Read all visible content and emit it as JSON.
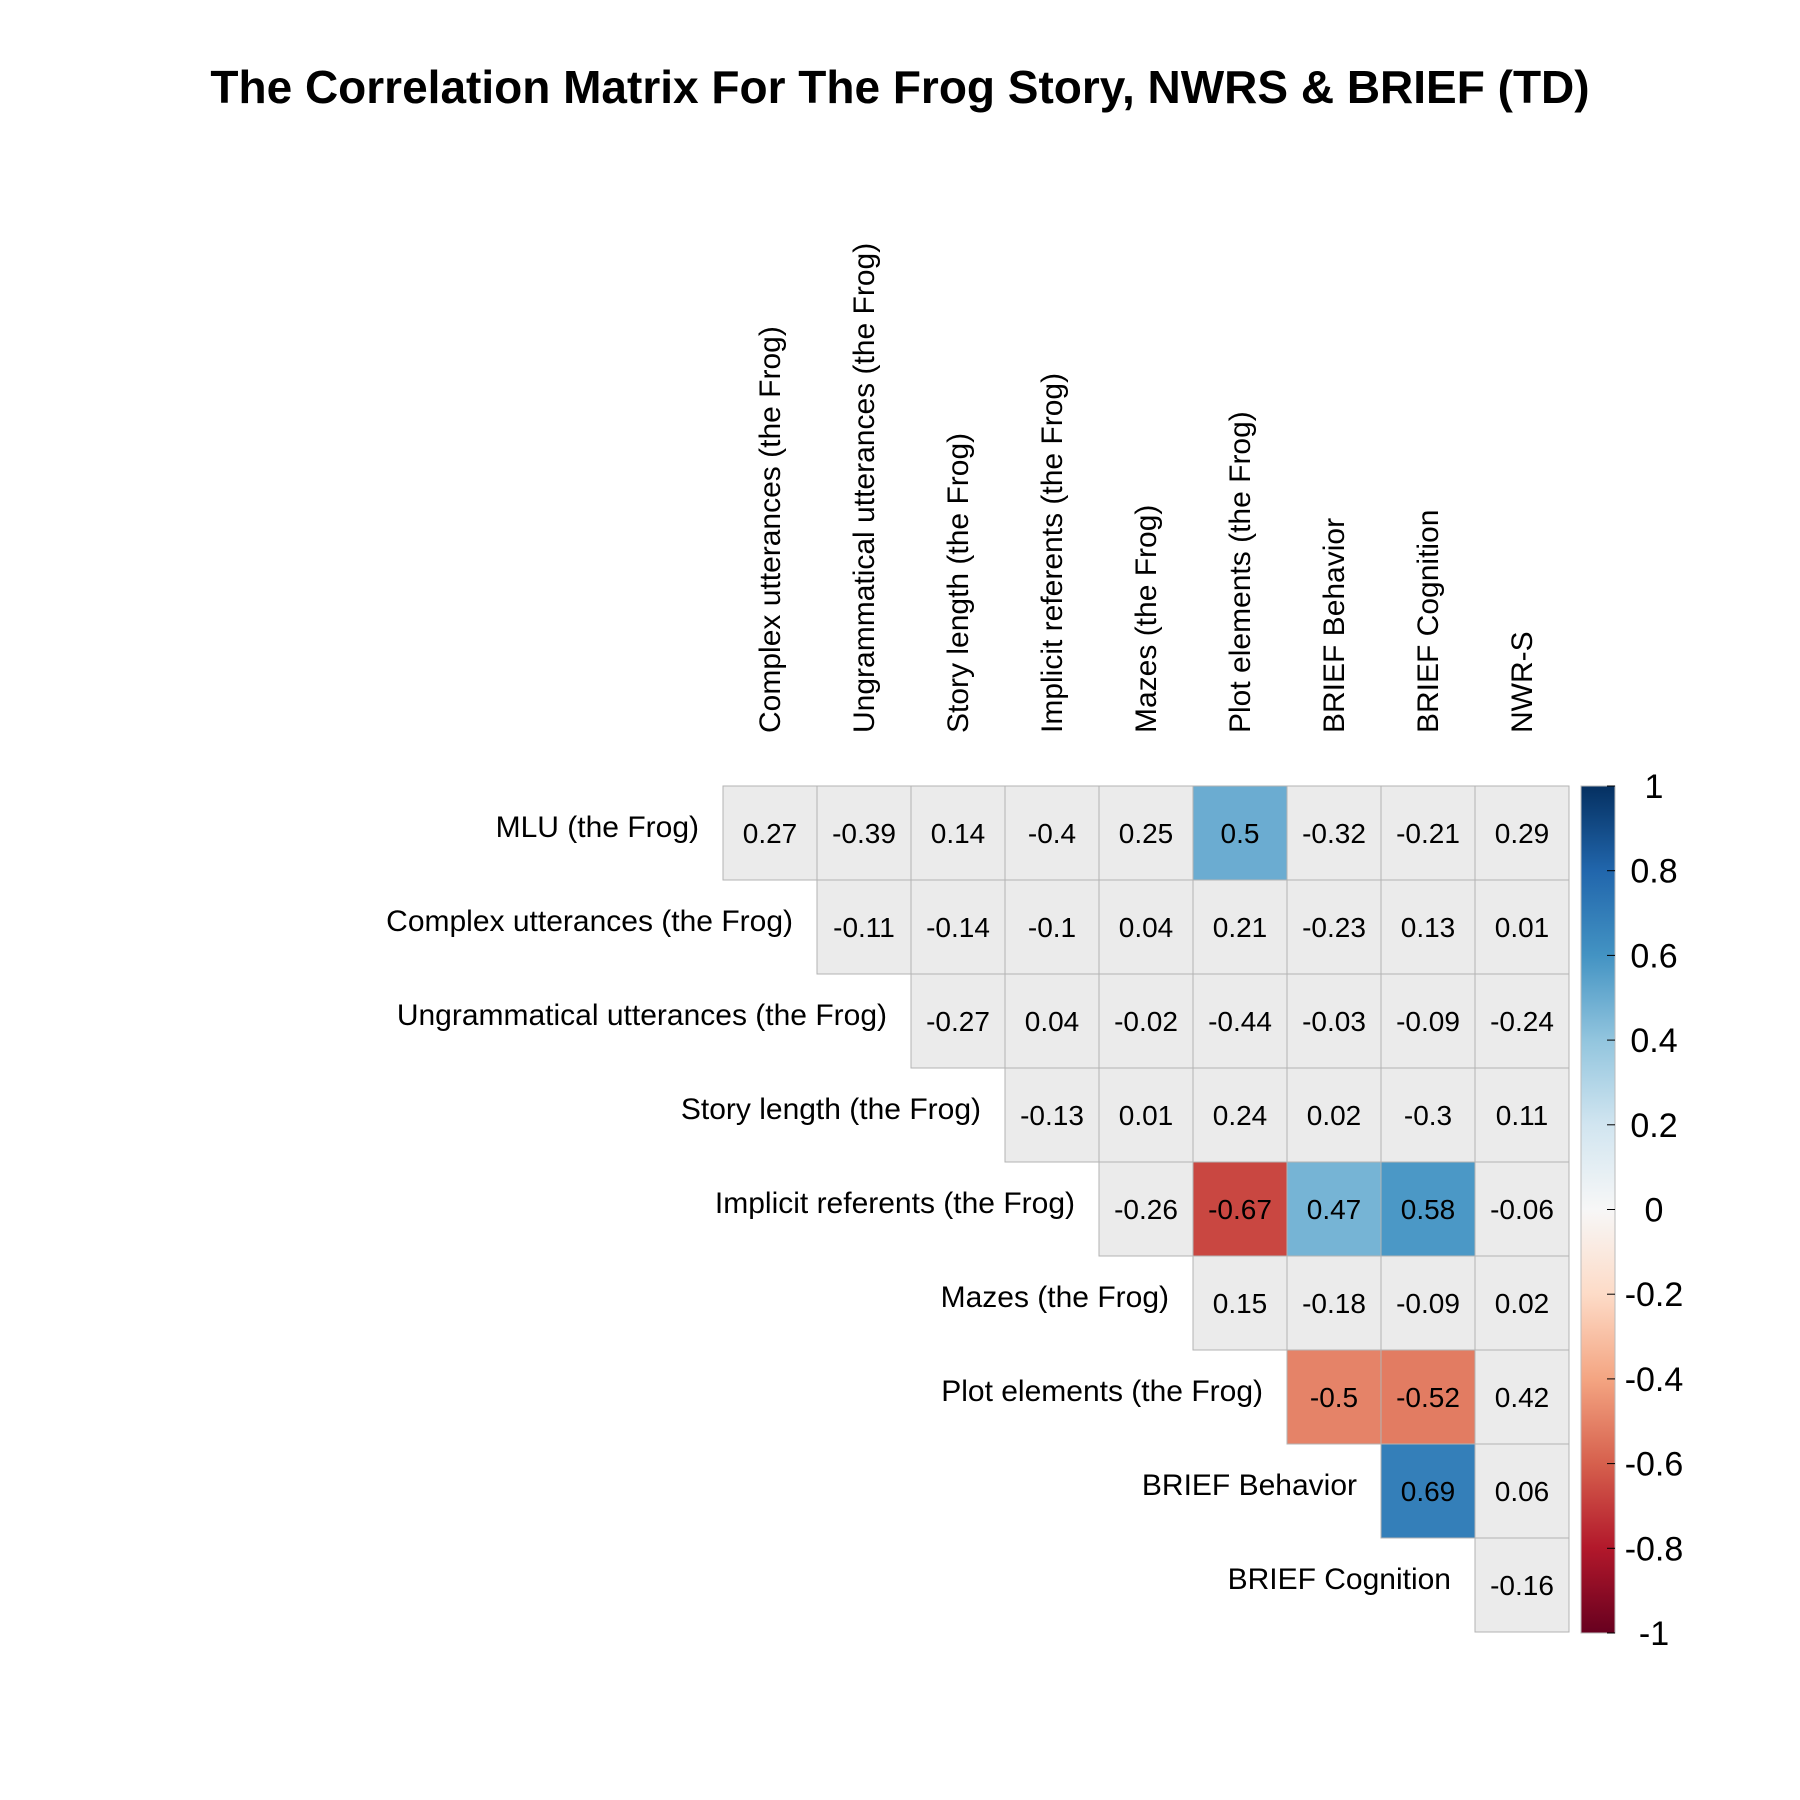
{
  "chart_data": {
    "type": "heatmap",
    "title": "The Correlation Matrix For The Frog Story, NWRS & BRIEF (TD)",
    "row_labels": [
      "MLU (the Frog)",
      "Complex utterances (the Frog)",
      "Ungrammatical utterances (the Frog)",
      "Story length (the Frog)",
      "Implicit referents (the Frog)",
      "Mazes (the Frog)",
      "Plot elements (the Frog)",
      "BRIEF Behavior",
      "BRIEF Cognition"
    ],
    "column_labels": [
      "Complex utterances (the Frog)",
      "Ungrammatical utterances (the Frog)",
      "Story length (the Frog)",
      "Implicit referents (the Frog)",
      "Mazes (the Frog)",
      "Plot elements (the Frog)",
      "BRIEF Behavior",
      "BRIEF Cognition",
      "NWR-S"
    ],
    "values": [
      [
        0.27,
        -0.39,
        0.14,
        -0.4,
        0.25,
        0.5,
        -0.32,
        -0.21,
        0.29
      ],
      [
        null,
        -0.11,
        -0.14,
        -0.1,
        0.04,
        0.21,
        -0.23,
        0.13,
        0.01
      ],
      [
        null,
        null,
        -0.27,
        0.04,
        -0.02,
        -0.44,
        -0.03,
        -0.09,
        -0.24
      ],
      [
        null,
        null,
        null,
        -0.13,
        0.01,
        0.24,
        0.02,
        -0.3,
        0.11
      ],
      [
        null,
        null,
        null,
        null,
        -0.26,
        -0.67,
        0.47,
        0.58,
        -0.06
      ],
      [
        null,
        null,
        null,
        null,
        null,
        0.15,
        -0.18,
        -0.09,
        0.02
      ],
      [
        null,
        null,
        null,
        null,
        null,
        null,
        -0.5,
        -0.52,
        0.42
      ],
      [
        null,
        null,
        null,
        null,
        null,
        null,
        null,
        0.69,
        0.06
      ],
      [
        null,
        null,
        null,
        null,
        null,
        null,
        null,
        null,
        -0.16
      ]
    ],
    "highlighted_cells": [
      [
        0,
        5
      ],
      [
        4,
        5
      ],
      [
        4,
        6
      ],
      [
        4,
        7
      ],
      [
        6,
        6
      ],
      [
        6,
        7
      ],
      [
        7,
        7
      ]
    ],
    "colorbar": {
      "range": [
        -1,
        1
      ],
      "ticks": [
        "1",
        "0.8",
        "0.6",
        "0.4",
        "0.2",
        "0",
        "-0.2",
        "-0.4",
        "-0.6",
        "-0.8",
        "-1"
      ],
      "colors": [
        "#67001f",
        "#b2182b",
        "#d6604d",
        "#f4a582",
        "#fddbc7",
        "#f7f7f7",
        "#d1e5f0",
        "#92c5de",
        "#4393c3",
        "#2166ac",
        "#053061"
      ]
    },
    "nonsignificant_fill": "#ebebeb"
  }
}
